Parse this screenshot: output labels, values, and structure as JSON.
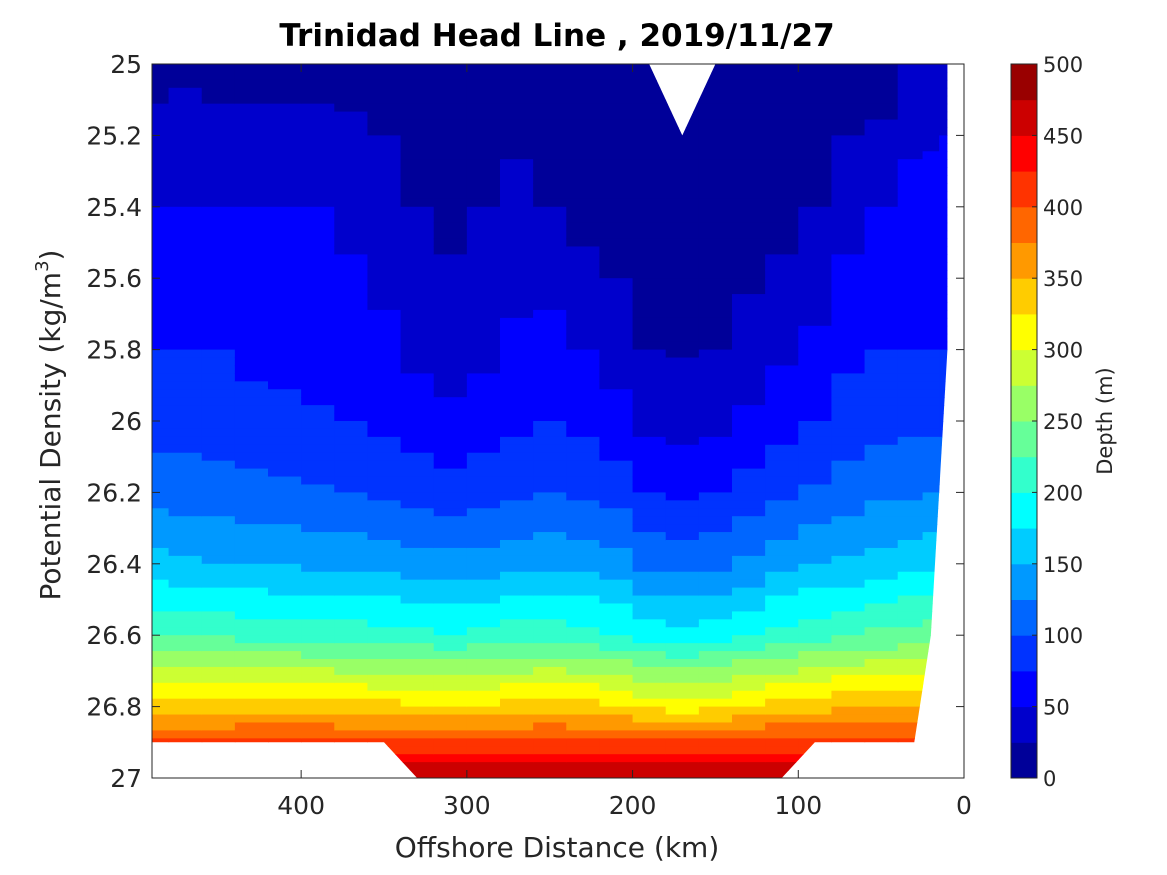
{
  "chart_data": {
    "type": "filled-contour",
    "title": "Trinidad Head Line , 2019/11/27",
    "xlabel": "Offshore Distance (km)",
    "ylabel_main": "Potential Density (kg/m",
    "ylabel_sup": "3",
    "ylabel_tail": ")",
    "x_range": [
      490,
      0
    ],
    "x_reversed": true,
    "x_ticks": [
      400,
      300,
      200,
      100,
      0
    ],
    "x_tick_labels": [
      "400",
      "300",
      "200",
      "100",
      "0"
    ],
    "y_range": [
      25,
      27
    ],
    "y_reversed": true,
    "y_ticks": [
      25,
      25.2,
      25.4,
      25.6,
      25.8,
      26,
      26.2,
      26.4,
      26.6,
      26.8,
      27
    ],
    "y_tick_labels": [
      "25",
      "25.2",
      "25.4",
      "25.6",
      "25.8",
      "26",
      "26.2",
      "26.4",
      "26.6",
      "26.8",
      "27"
    ],
    "colorbar": {
      "label": "Depth (m)",
      "range": [
        0,
        500
      ],
      "level_step": 25,
      "colormap": "jet",
      "ticks": [
        0,
        50,
        100,
        150,
        200,
        250,
        300,
        350,
        400,
        450,
        500
      ],
      "tick_labels": [
        "0",
        "50",
        "100",
        "150",
        "200",
        "250",
        "300",
        "350",
        "400",
        "450",
        "500"
      ]
    },
    "x_samples": [
      490,
      470,
      450,
      430,
      410,
      390,
      370,
      350,
      330,
      310,
      290,
      270,
      250,
      230,
      210,
      190,
      170,
      150,
      130,
      110,
      90,
      70,
      50,
      30,
      20,
      10
    ],
    "top_density": [
      25,
      25,
      25,
      25,
      25,
      25,
      25,
      25,
      25,
      25,
      25,
      25,
      25,
      25,
      25,
      25,
      25.2,
      25,
      25,
      25,
      25,
      25,
      25,
      25,
      25,
      25
    ],
    "bottom_density": [
      26.9,
      26.9,
      26.9,
      26.9,
      26.9,
      26.9,
      26.9,
      26.9,
      27,
      27,
      27,
      27,
      27,
      27,
      27,
      27,
      27,
      27,
      27,
      27,
      26.9,
      26.9,
      26.9,
      26.9,
      26.6,
      25.8
    ],
    "isopycnal_depth_profiles": [
      {
        "density": 25.0,
        "depth": [
          15,
          20,
          15,
          15,
          15,
          15,
          15,
          15,
          5,
          5,
          15,
          15,
          10,
          5,
          5,
          0,
          0,
          0,
          5,
          5,
          10,
          10,
          10,
          30,
          35,
          40
        ]
      },
      {
        "density": 25.4,
        "depth": [
          50,
          50,
          50,
          50,
          50,
          50,
          45,
          35,
          25,
          18,
          25,
          30,
          25,
          15,
          10,
          5,
          5,
          5,
          10,
          15,
          25,
          40,
          50,
          60,
          60,
          60
        ]
      },
      {
        "density": 25.8,
        "depth": [
          75,
          75,
          75,
          70,
          70,
          65,
          60,
          55,
          45,
          38,
          45,
          55,
          60,
          50,
          40,
          25,
          22,
          25,
          35,
          45,
          55,
          70,
          75,
          75,
          75,
          75
        ]
      },
      {
        "density": 26.0,
        "depth": [
          90,
          88,
          85,
          82,
          80,
          78,
          75,
          70,
          60,
          55,
          60,
          70,
          75,
          70,
          60,
          45,
          40,
          45,
          55,
          65,
          75,
          85,
          90,
          92,
          95,
          95
        ]
      },
      {
        "density": 26.2,
        "depth": [
          115,
          113,
          110,
          108,
          105,
          102,
          100,
          96,
          90,
          85,
          90,
          97,
          100,
          95,
          88,
          75,
          70,
          75,
          85,
          95,
          103,
          112,
          118,
          122,
          125,
          125
        ]
      },
      {
        "density": 26.4,
        "depth": [
          158,
          155,
          152,
          150,
          147,
          145,
          142,
          140,
          136,
          133,
          136,
          142,
          145,
          140,
          133,
          120,
          115,
          120,
          130,
          140,
          148,
          155,
          160,
          165,
          170,
          170
        ]
      },
      {
        "density": 26.6,
        "depth": [
          225,
          222,
          220,
          218,
          216,
          214,
          212,
          210,
          206,
          203,
          206,
          212,
          215,
          210,
          203,
          190,
          185,
          190,
          200,
          210,
          218,
          225,
          230,
          235,
          240,
          240
        ]
      },
      {
        "density": 26.8,
        "depth": [
          335,
          335,
          335,
          338,
          340,
          338,
          335,
          333,
          330,
          328,
          330,
          335,
          338,
          335,
          330,
          320,
          315,
          320,
          330,
          338,
          343,
          348,
          350,
          352,
          355,
          355
        ]
      },
      {
        "density": 26.9,
        "depth": [
          405,
          405,
          405,
          405,
          405,
          405,
          405,
          405,
          405,
          405,
          405,
          405,
          405,
          405,
          405,
          405,
          405,
          405,
          405,
          405,
          405,
          405,
          405,
          405,
          405,
          405
        ]
      },
      {
        "density": 27.0,
        "depth": [
          480,
          480,
          480,
          480,
          480,
          480,
          480,
          480,
          480,
          480,
          480,
          480,
          480,
          480,
          480,
          480,
          480,
          480,
          480,
          480,
          480,
          480,
          480,
          480,
          480,
          480
        ]
      }
    ]
  }
}
